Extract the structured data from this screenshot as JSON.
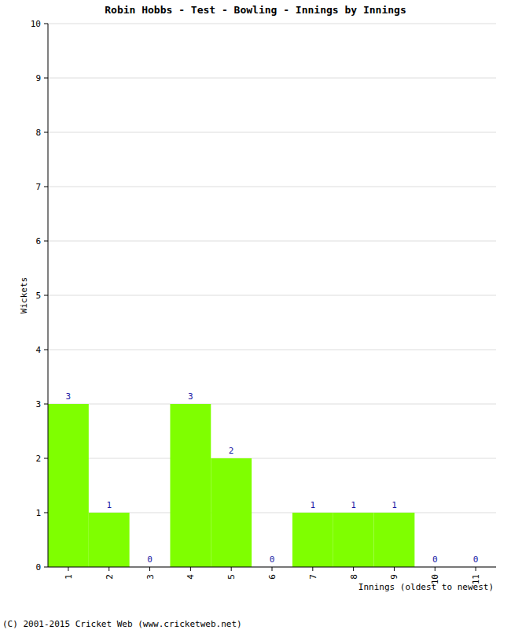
{
  "chart_data": {
    "type": "bar",
    "title": "Robin Hobbs - Test - Bowling - Innings by Innings",
    "x_label": "Innings (oldest to newest)",
    "y_label": "Wickets",
    "categories": [
      "1",
      "2",
      "3",
      "4",
      "5",
      "6",
      "7",
      "8",
      "9",
      "10",
      "11"
    ],
    "values": [
      3,
      1,
      0,
      3,
      2,
      0,
      1,
      1,
      1,
      0,
      0
    ],
    "color": "#7fff00",
    "ylim": [
      0,
      10
    ],
    "yticks": [
      0,
      1,
      2,
      3,
      4,
      5,
      6,
      7,
      8,
      9,
      10
    ],
    "grid": true,
    "data_labels": true,
    "annotations": [
      "(C) 2001-2015 Cricket Web (www.cricketweb.net)"
    ]
  }
}
